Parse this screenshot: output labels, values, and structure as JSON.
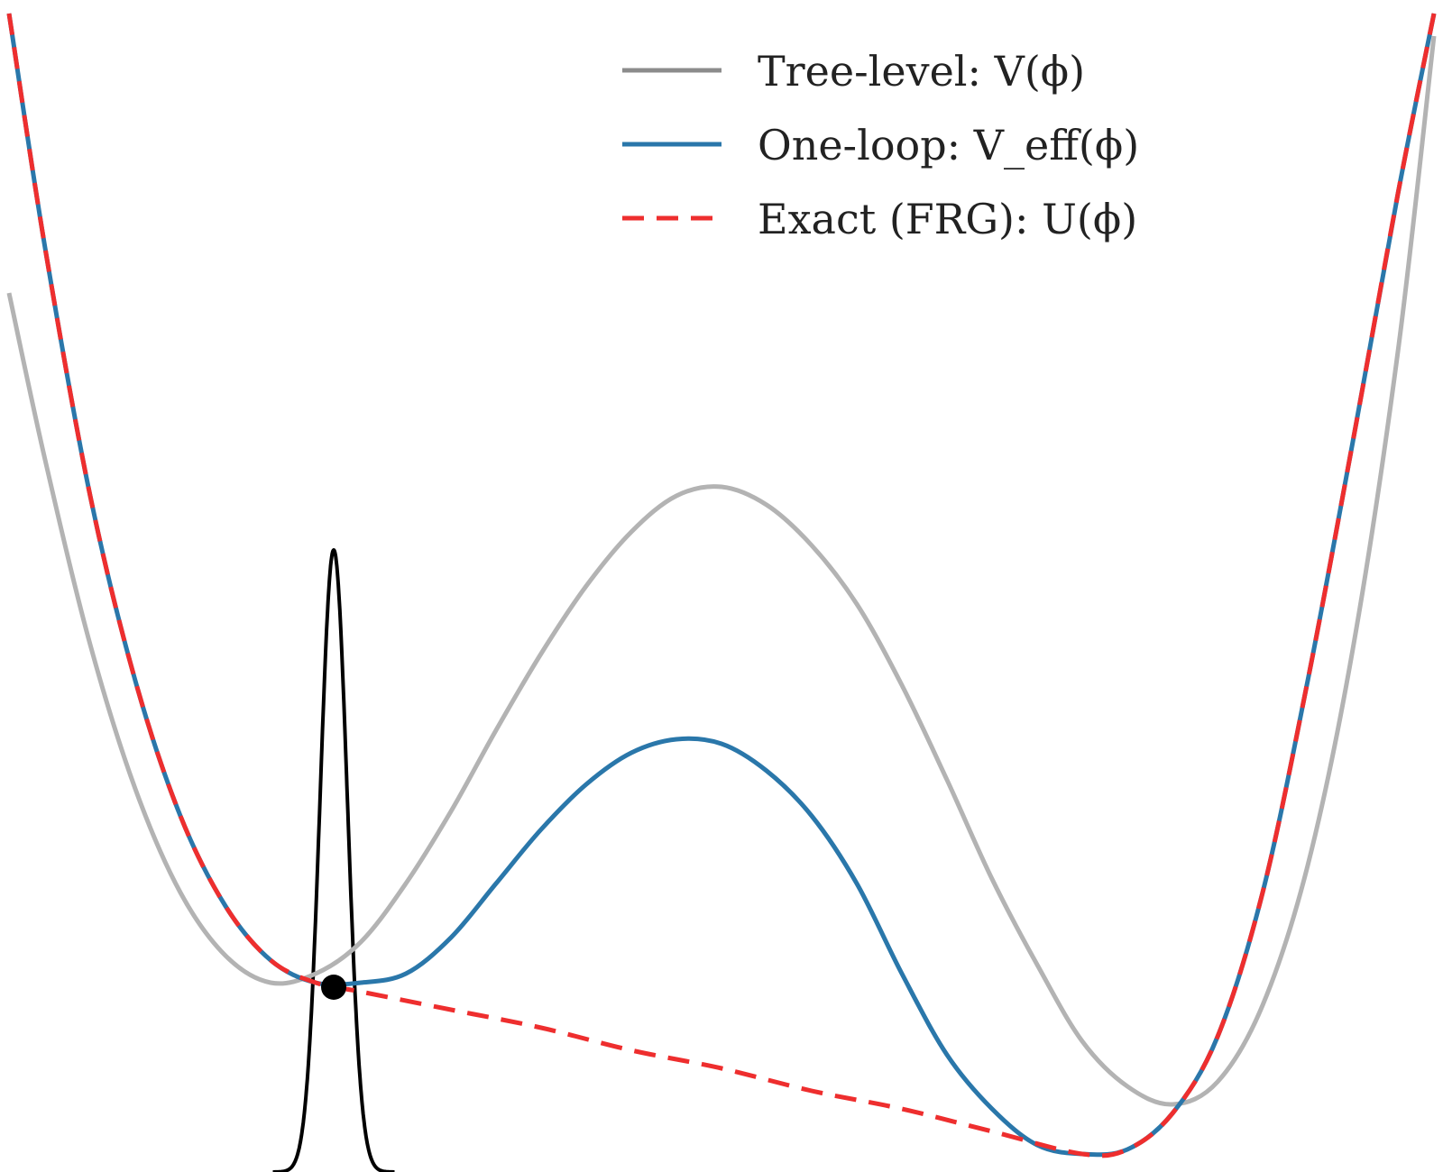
{
  "chart_data": {
    "type": "line",
    "title": "",
    "xlabel": "",
    "ylabel": "",
    "axes_visible": false,
    "grid": false,
    "legend_position": "top-right",
    "xlim": [
      -1.6,
      1.6
    ],
    "ylim": [
      -0.42,
      2.18
    ],
    "series": [
      {
        "name": "Tree-level: V(ϕ)",
        "key": "tree",
        "color": "#b3b3b3",
        "style": "solid",
        "x": [
          -1.58,
          -1.5,
          -1.4,
          -1.3,
          -1.2,
          -1.1,
          -1.0,
          -0.9,
          -0.8,
          -0.7,
          -0.6,
          -0.5,
          -0.4,
          -0.3,
          -0.2,
          -0.1,
          0.0,
          0.1,
          0.2,
          0.3,
          0.4,
          0.5,
          0.6,
          0.7,
          0.8,
          0.9,
          1.0,
          1.1,
          1.2,
          1.3,
          1.4,
          1.5,
          1.58
        ],
        "y": [
          1.53,
          1.16,
          0.75,
          0.43,
          0.2,
          0.06,
          0.0,
          0.02,
          0.09,
          0.22,
          0.38,
          0.56,
          0.73,
          0.88,
          1.0,
          1.08,
          1.1,
          1.06,
          0.97,
          0.84,
          0.66,
          0.45,
          0.23,
          0.04,
          -0.13,
          -0.23,
          -0.27,
          -0.22,
          -0.05,
          0.26,
          0.74,
          1.4,
          2.1
        ]
      },
      {
        "name": "One-loop: V_eff(ϕ)",
        "key": "oneloop",
        "color": "#2a77aa",
        "style": "solid",
        "x": [
          -1.58,
          -1.5,
          -1.4,
          -1.3,
          -1.2,
          -1.1,
          -1.0,
          -0.9,
          -0.8,
          -0.7,
          -0.6,
          -0.5,
          -0.4,
          -0.3,
          -0.2,
          -0.1,
          0.0,
          0.1,
          0.2,
          0.3,
          0.4,
          0.5,
          0.6,
          0.7,
          0.8,
          0.9,
          1.0,
          1.1,
          1.2,
          1.3,
          1.4,
          1.5,
          1.58
        ],
        "y": [
          2.15,
          1.63,
          1.08,
          0.67,
          0.37,
          0.17,
          0.05,
          0.0,
          0.0,
          0.02,
          0.1,
          0.22,
          0.34,
          0.44,
          0.51,
          0.54,
          0.53,
          0.47,
          0.37,
          0.22,
          0.02,
          -0.16,
          -0.28,
          -0.36,
          -0.38,
          -0.37,
          -0.29,
          -0.12,
          0.2,
          0.67,
          1.2,
          1.75,
          2.15
        ]
      },
      {
        "name": "Exact (FRG): U(ϕ)",
        "key": "exact",
        "color": "#ee2e2e",
        "style": "dashed",
        "x": [
          -1.58,
          -1.5,
          -1.4,
          -1.3,
          -1.2,
          -1.1,
          -1.0,
          -0.9,
          -0.8,
          -0.6,
          -0.4,
          -0.2,
          0.0,
          0.2,
          0.4,
          0.6,
          0.8,
          0.9,
          1.0,
          1.1,
          1.2,
          1.3,
          1.4,
          1.5,
          1.58
        ],
        "y": [
          2.15,
          1.63,
          1.08,
          0.67,
          0.37,
          0.17,
          0.05,
          0.0,
          -0.02,
          -0.06,
          -0.1,
          -0.15,
          -0.19,
          -0.24,
          -0.28,
          -0.33,
          -0.38,
          -0.37,
          -0.29,
          -0.12,
          0.2,
          0.67,
          1.2,
          1.75,
          2.15
        ]
      }
    ],
    "annotations": [
      {
        "type": "point",
        "color": "#000000",
        "x": -0.86,
        "y": -0.01
      },
      {
        "type": "gaussian",
        "color": "#000000",
        "center": -0.86,
        "sigma": 0.03,
        "baseline": -0.42,
        "peak": 0.96
      }
    ]
  }
}
